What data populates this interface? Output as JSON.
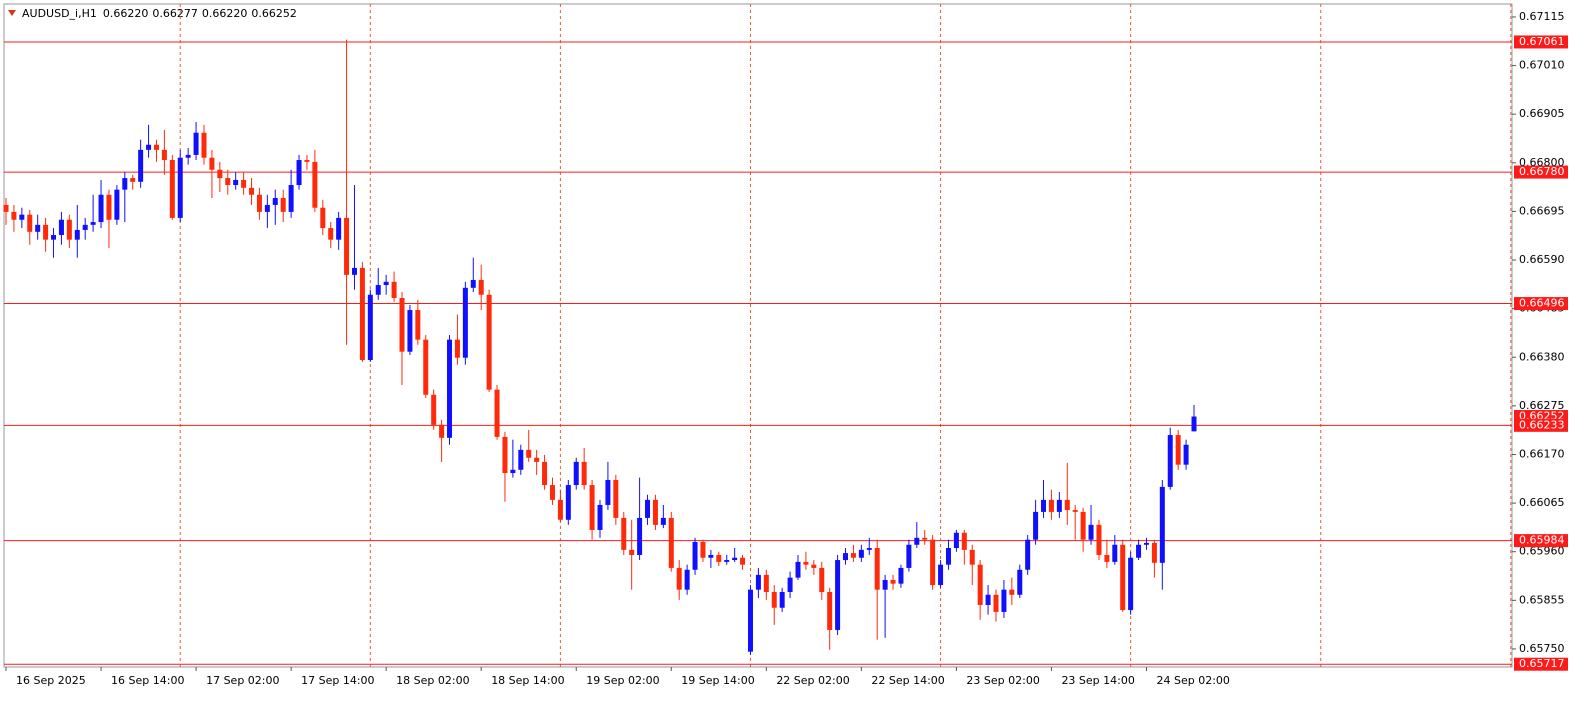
{
  "chart_data": {
    "type": "candlestick",
    "title": "AUDUSD_i,H1",
    "header_values": [
      "0.66220",
      "0.66277",
      "0.66220",
      "0.66252"
    ],
    "up_color": "#1010ff",
    "down_color": "#ff2a0a",
    "level_color": "#ff1a1a",
    "separator_color": "#f05a30",
    "ylim": [
      0.65711,
      0.67143
    ],
    "yticks": [
      {
        "value": 0.6575,
        "label": "0.65750"
      },
      0.65855,
      {
        "value": 0.6596,
        "label": "0.65960"
      },
      0.66065,
      {
        "value": 0.6617,
        "label": "0.66170"
      },
      0.66275,
      {
        "value": 0.6638,
        "label": "0.66380"
      },
      0.66485,
      {
        "value": 0.6659,
        "label": "0.66590"
      },
      0.66695,
      {
        "value": 0.668,
        "label": "0.66800"
      },
      0.66905,
      {
        "value": 0.6701,
        "label": "0.67010"
      },
      0.67115
    ],
    "levels": [
      0.67061,
      {
        "value": 0.6678,
        "label": "0.66780"
      },
      0.66496,
      0.66233,
      0.65984,
      0.65717
    ],
    "bid": 0.66252,
    "categories": [
      "16 Sep 2025",
      null,
      null,
      null,
      null,
      null,
      null,
      null,
      null,
      null,
      null,
      null,
      "16 Sep 14:00",
      null,
      null,
      null,
      null,
      null,
      null,
      null,
      null,
      null,
      null,
      null,
      "17 Sep 02:00",
      null,
      null,
      null,
      null,
      null,
      null,
      null,
      null,
      null,
      null,
      null,
      "17 Sep 14:00",
      null,
      null,
      null,
      null,
      null,
      null,
      null,
      null,
      null,
      null,
      null,
      "18 Sep 02:00",
      null,
      null,
      null,
      null,
      null,
      null,
      null,
      null,
      null,
      null,
      null,
      "18 Sep 14:00",
      null,
      null,
      null,
      null,
      null,
      null,
      null,
      null,
      null,
      null,
      null,
      "19 Sep 02:00",
      null,
      null,
      null,
      null,
      null,
      null,
      null,
      null,
      null,
      null,
      null,
      "19 Sep 14:00",
      null,
      null,
      null,
      null,
      null,
      null,
      null,
      null,
      null,
      null,
      null,
      "22 Sep 02:00",
      null,
      null,
      null,
      null,
      null,
      null,
      null,
      null,
      null,
      null,
      null,
      "22 Sep 14:00",
      null,
      null,
      null,
      null,
      null,
      null,
      null,
      null,
      null,
      null,
      null,
      "23 Sep 02:00",
      null,
      null,
      null,
      null,
      null,
      null,
      null,
      null,
      null,
      null,
      null,
      "23 Sep 14:00",
      null,
      null,
      null,
      null,
      null,
      null,
      null,
      null,
      null,
      null,
      null,
      "24 Sep 02:00",
      null,
      null,
      null,
      null,
      null,
      null
    ],
    "open": [
      0.66709,
      0.66694,
      0.66677,
      0.66688,
      0.66651,
      0.66666,
      0.66634,
      0.66644,
      0.66677,
      0.66634,
      0.66655,
      0.66666,
      0.66672,
      0.66731,
      0.66677,
      0.66742,
      0.66767,
      0.66759,
      0.66828,
      0.66839,
      0.66828,
      0.66806,
      0.66681,
      0.66811,
      0.66817,
      0.66865,
      0.66811,
      0.66785,
      0.66767,
      0.66752,
      0.66763,
      0.66746,
      0.66731,
      0.66694,
      0.66709,
      0.66724,
      0.66694,
      0.66752,
      0.66806,
      0.66802,
      0.66703,
      0.66659,
      0.66634,
      0.66681,
      0.66558,
      0.66573,
      0.66374,
      0.66515,
      0.66536,
      0.66543,
      0.66508,
      0.66392,
      0.66482,
      0.66418,
      0.66299,
      0.66234,
      0.66206,
      0.66418,
      0.66379,
      0.6653,
      0.66547,
      0.66515,
      0.6631,
      0.66208,
      0.6613,
      0.66137,
      0.6618,
      0.66163,
      0.66154,
      0.66104,
      0.66072,
      0.66029,
      0.66104,
      0.66154,
      0.66104,
      0.66007,
      0.66061,
      0.66115,
      0.66033,
      0.65964,
      0.65953,
      0.66033,
      0.66072,
      0.66018,
      0.66033,
      0.65925,
      0.65878,
      0.65921,
      0.65981,
      0.65947,
      0.65953,
      0.65938,
      0.65942,
      0.65947,
      0.65744,
      0.65878,
      0.6591,
      0.65873,
      0.65839,
      0.65873,
      0.65904,
      0.65938,
      0.65932,
      0.65925,
      0.65873,
      0.65791,
      0.65942,
      0.65957,
      0.65947,
      0.65964,
      0.65968,
      0.65878,
      0.65899,
      0.65891,
      0.65925,
      0.65975,
      0.6599,
      0.65986,
      0.65888,
      0.65932,
      0.65968,
      0.66001,
      0.65964,
      0.65932,
      0.65845,
      0.65867,
      0.6583,
      0.65878,
      0.65867,
      0.65921,
      0.65986,
      0.66046,
      0.66072,
      0.66046,
      0.66072,
      0.6605,
      0.66046,
      0.65986,
      0.66018,
      0.65953,
      0.65938,
      0.65975,
      0.65834,
      0.65947,
      0.65975,
      0.65979,
      0.65936,
      0.661,
      0.66212,
      0.66148,
      0.6622
    ],
    "high": [
      0.66724,
      0.66709,
      0.66703,
      0.66698,
      0.66688,
      0.66681,
      0.66659,
      0.66694,
      0.66688,
      0.66709,
      0.66681,
      0.66731,
      0.66763,
      0.66742,
      0.66752,
      0.6678,
      0.66774,
      0.6685,
      0.66882,
      0.6685,
      0.66871,
      0.66817,
      0.66828,
      0.66832,
      0.66888,
      0.66882,
      0.66828,
      0.66802,
      0.66785,
      0.6678,
      0.6678,
      0.66767,
      0.66746,
      0.66731,
      0.66742,
      0.66742,
      0.66785,
      0.66817,
      0.66817,
      0.66828,
      0.6672,
      0.66672,
      0.66694,
      0.67066,
      0.66752,
      0.66586,
      0.66526,
      0.66573,
      0.66558,
      0.66565,
      0.66521,
      0.66493,
      0.66504,
      0.66428,
      0.6631,
      0.66245,
      0.66428,
      0.66472,
      0.66543,
      0.66595,
      0.6658,
      0.66526,
      0.6632,
      0.66219,
      0.66202,
      0.66191,
      0.66223,
      0.6618,
      0.66169,
      0.6612,
      0.66094,
      0.66115,
      0.66163,
      0.66184,
      0.66115,
      0.66072,
      0.66154,
      0.66126,
      0.66046,
      0.66029,
      0.6612,
      0.66083,
      0.66083,
      0.66061,
      0.66046,
      0.65942,
      0.65932,
      0.6599,
      0.65986,
      0.65964,
      0.6596,
      0.65953,
      0.65968,
      0.65953,
      0.65888,
      0.65925,
      0.65921,
      0.65888,
      0.65882,
      0.65917,
      0.65953,
      0.6596,
      0.65942,
      0.65938,
      0.65882,
      0.65953,
      0.65968,
      0.65975,
      0.65975,
      0.6599,
      0.65986,
      0.6591,
      0.6591,
      0.65932,
      0.65986,
      0.66024,
      0.66007,
      0.65996,
      0.65942,
      0.65986,
      0.66007,
      0.66007,
      0.65975,
      0.65942,
      0.65888,
      0.65878,
      0.65899,
      0.65904,
      0.65932,
      0.65996,
      0.66072,
      0.66115,
      0.66094,
      0.66089,
      0.66152,
      0.66061,
      0.66055,
      0.66061,
      0.66029,
      0.65986,
      0.65996,
      0.65986,
      0.6596,
      0.65986,
      0.6599,
      0.65986,
      0.66115,
      0.66228,
      0.66223,
      0.66202,
      0.66277
    ],
    "low": [
      0.66666,
      0.66651,
      0.66659,
      0.66623,
      0.66634,
      0.66608,
      0.66595,
      0.66623,
      0.66616,
      0.66595,
      0.66634,
      0.66651,
      0.66659,
      0.66616,
      0.66666,
      0.66672,
      0.66742,
      0.66746,
      0.66811,
      0.66802,
      0.66774,
      0.66677,
      0.66672,
      0.66796,
      0.66806,
      0.66796,
      0.66724,
      0.66737,
      0.66731,
      0.66742,
      0.66731,
      0.66709,
      0.66677,
      0.66659,
      0.66666,
      0.66672,
      0.66681,
      0.66742,
      0.66785,
      0.66694,
      0.66644,
      0.66616,
      0.66612,
      0.66407,
      0.66526,
      0.6637,
      0.6637,
      0.66504,
      0.66515,
      0.665,
      0.6632,
      0.66385,
      0.66407,
      0.66292,
      0.66223,
      0.66154,
      0.66191,
      0.66364,
      0.66364,
      0.66521,
      0.66482,
      0.66305,
      0.66202,
      0.66068,
      0.6612,
      0.66126,
      0.66154,
      0.66126,
      0.66094,
      0.66061,
      0.66024,
      0.66018,
      0.66094,
      0.66094,
      0.65986,
      0.6599,
      0.6605,
      0.66018,
      0.65953,
      0.65878,
      0.65942,
      0.66018,
      0.66007,
      0.66011,
      0.65917,
      0.65856,
      0.65867,
      0.6591,
      0.65938,
      0.65925,
      0.65929,
      0.65932,
      0.65938,
      0.65921,
      0.65737,
      0.6586,
      0.65856,
      0.65802,
      0.6583,
      0.6586,
      0.65899,
      0.65921,
      0.6591,
      0.65856,
      0.65748,
      0.6578,
      0.65932,
      0.65938,
      0.65938,
      0.65953,
      0.6577,
      0.65774,
      0.65878,
      0.65882,
      0.65917,
      0.65968,
      0.65975,
      0.65878,
      0.65882,
      0.65921,
      0.6596,
      0.65932,
      0.65888,
      0.65813,
      0.65824,
      0.65809,
      0.65817,
      0.65845,
      0.6586,
      0.6591,
      0.65975,
      0.66033,
      0.66029,
      0.66033,
      0.66018,
      0.65986,
      0.6596,
      0.65975,
      0.65942,
      0.65925,
      0.65932,
      0.6583,
      0.65824,
      0.65942,
      0.65964,
      0.65904,
      0.65878,
      0.66094,
      0.66137,
      0.66137,
      0.6622
    ],
    "close": [
      0.66694,
      0.66677,
      0.66688,
      0.66651,
      0.66666,
      0.66634,
      0.66644,
      0.66677,
      0.66634,
      0.66655,
      0.66666,
      0.66672,
      0.66731,
      0.66677,
      0.66742,
      0.66767,
      0.66759,
      0.66828,
      0.66839,
      0.66828,
      0.66806,
      0.66681,
      0.66811,
      0.66817,
      0.66865,
      0.66811,
      0.66785,
      0.66767,
      0.66752,
      0.66763,
      0.66746,
      0.66731,
      0.66694,
      0.66709,
      0.66724,
      0.66694,
      0.66752,
      0.66806,
      0.66802,
      0.66703,
      0.66659,
      0.66634,
      0.66681,
      0.66558,
      0.66573,
      0.66374,
      0.66515,
      0.66536,
      0.66543,
      0.66508,
      0.66392,
      0.66482,
      0.66418,
      0.66299,
      0.66234,
      0.66206,
      0.66418,
      0.66379,
      0.6653,
      0.66547,
      0.66515,
      0.6631,
      0.66208,
      0.6613,
      0.66137,
      0.6618,
      0.66163,
      0.66154,
      0.66104,
      0.66072,
      0.66029,
      0.66104,
      0.66154,
      0.66104,
      0.66007,
      0.66061,
      0.66115,
      0.66033,
      0.65964,
      0.65953,
      0.66033,
      0.66072,
      0.66018,
      0.66033,
      0.65925,
      0.65878,
      0.65921,
      0.65981,
      0.65947,
      0.65953,
      0.65938,
      0.65942,
      0.65947,
      0.65932,
      0.65878,
      0.6591,
      0.65873,
      0.65839,
      0.65873,
      0.65904,
      0.65938,
      0.65932,
      0.65925,
      0.65873,
      0.65791,
      0.65942,
      0.65957,
      0.65947,
      0.65964,
      0.65968,
      0.65878,
      0.65899,
      0.65891,
      0.65925,
      0.65975,
      0.6599,
      0.65986,
      0.65888,
      0.65932,
      0.65968,
      0.66001,
      0.65964,
      0.65932,
      0.65845,
      0.65867,
      0.6583,
      0.65878,
      0.65867,
      0.65921,
      0.65986,
      0.66046,
      0.66072,
      0.66046,
      0.66072,
      0.6605,
      0.66046,
      0.65986,
      0.66018,
      0.65953,
      0.65938,
      0.65975,
      0.65834,
      0.65947,
      0.65975,
      0.65979,
      0.65936,
      0.661,
      0.66212,
      0.66148,
      0.66191,
      0.66252
    ]
  }
}
